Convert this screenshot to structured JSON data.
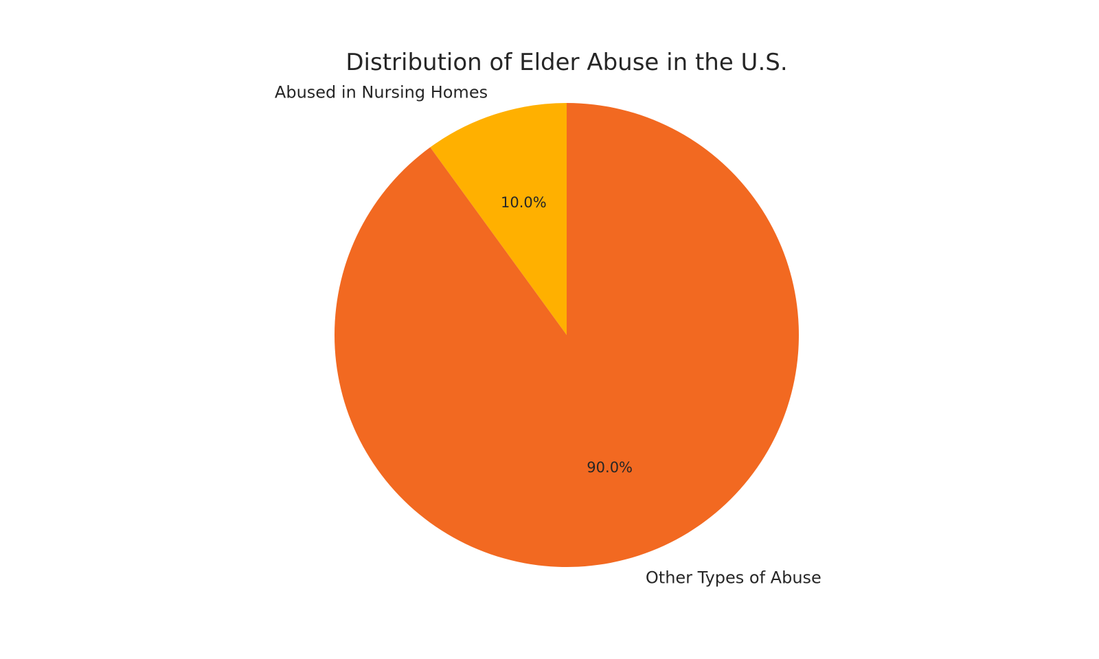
{
  "chart_data": {
    "type": "pie",
    "title": "Distribution of Elder Abuse in the U.S.",
    "start_angle_deg": 90,
    "direction": "counterclockwise",
    "slices": [
      {
        "label": "Abused in Nursing Homes",
        "value": 10.0,
        "pct_label": "10.0%",
        "color": "#FFB000"
      },
      {
        "label": "Other Types of Abuse",
        "value": 90.0,
        "pct_label": "90.0%",
        "color": "#F26921"
      }
    ]
  }
}
